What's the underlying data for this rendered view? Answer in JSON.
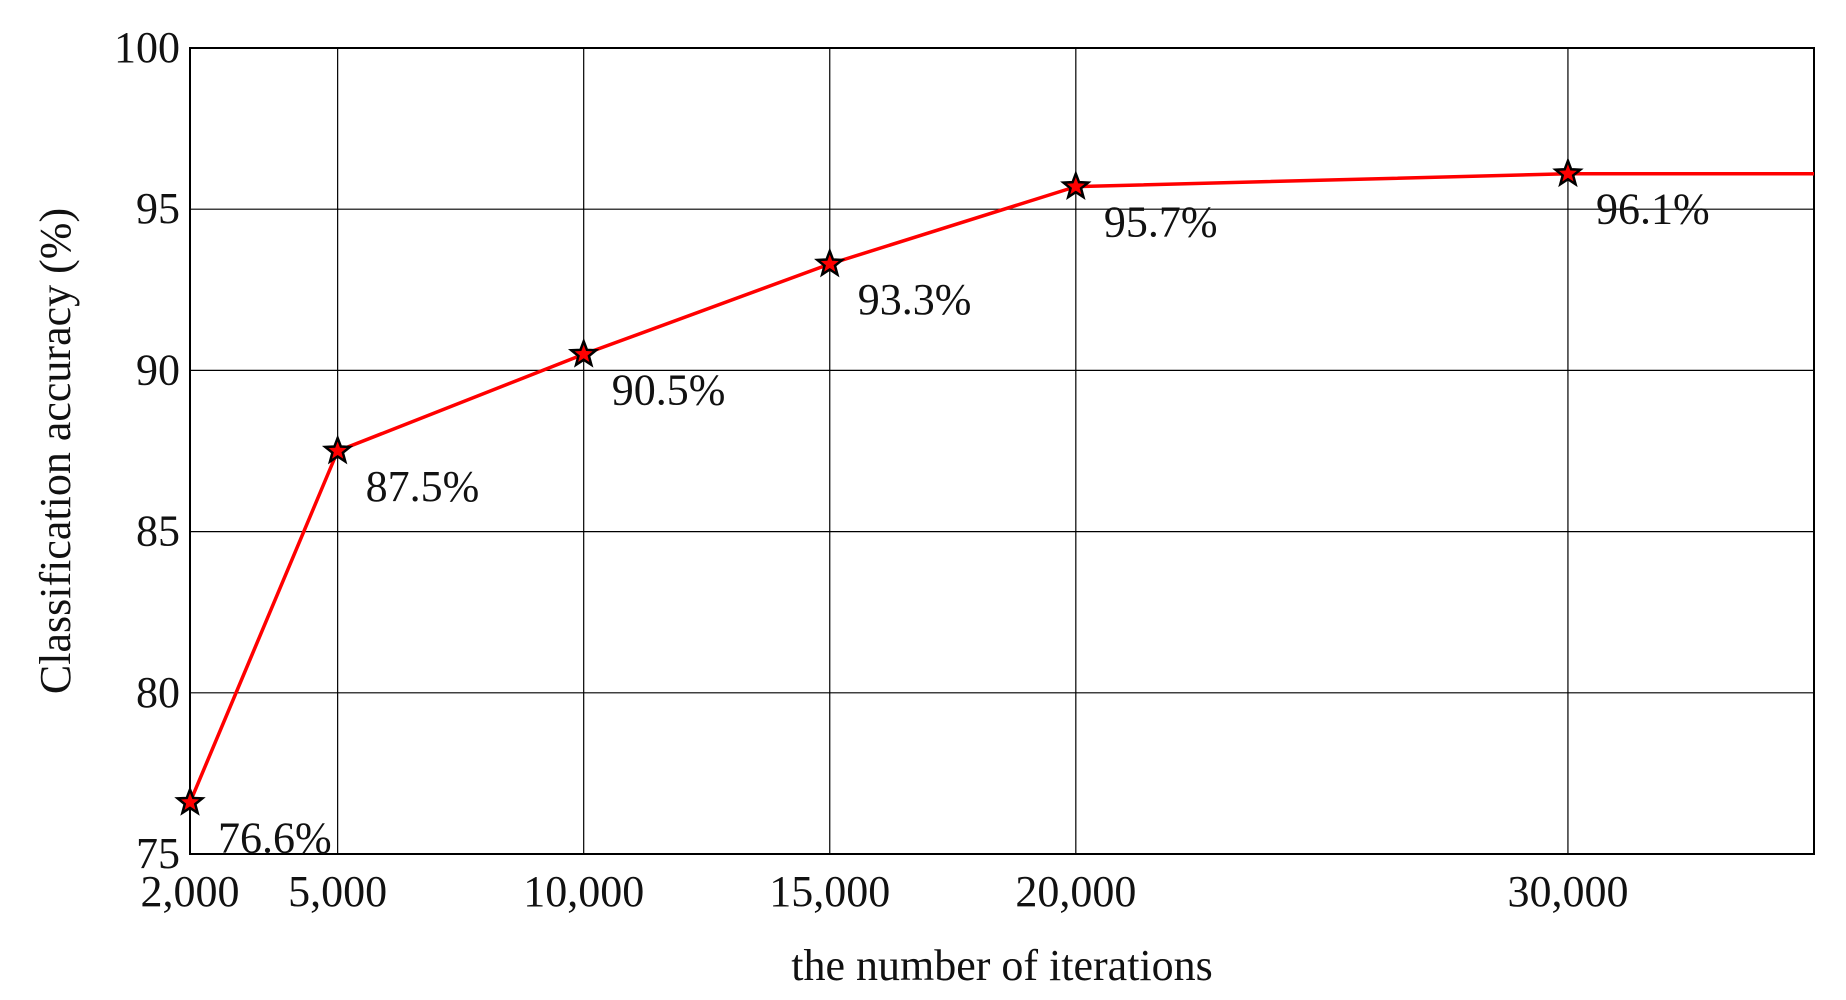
{
  "chart_data": {
    "type": "line",
    "title": "",
    "xlabel": "the number of iterations",
    "ylabel": "Classification accuracy (%)",
    "x_ticks": [
      {
        "value": 2000,
        "label": "2,000"
      },
      {
        "value": 5000,
        "label": "5,000"
      },
      {
        "value": 10000,
        "label": "10,000"
      },
      {
        "value": 15000,
        "label": "15,000"
      },
      {
        "value": 20000,
        "label": "20,000"
      },
      {
        "value": 30000,
        "label": "30,000"
      }
    ],
    "y_ticks": [
      75,
      80,
      85,
      90,
      95,
      100
    ],
    "xlim": [
      2000,
      35000
    ],
    "ylim": [
      75,
      100
    ],
    "grid": true,
    "legend": "none",
    "series": [
      {
        "x": [
          2000,
          5000,
          10000,
          15000,
          20000,
          30000,
          35000
        ],
        "y": [
          76.6,
          87.5,
          90.5,
          93.3,
          95.7,
          96.1,
          96.1
        ],
        "color": "#ff0000",
        "marker": "star"
      }
    ],
    "data_labels": [
      {
        "x": 2000,
        "y": 76.6,
        "text": "76.6%"
      },
      {
        "x": 5000,
        "y": 87.5,
        "text": "87.5%"
      },
      {
        "x": 10000,
        "y": 90.5,
        "text": "90.5%"
      },
      {
        "x": 15000,
        "y": 93.3,
        "text": "93.3%"
      },
      {
        "x": 20000,
        "y": 95.7,
        "text": "95.7%"
      },
      {
        "x": 30000,
        "y": 96.1,
        "text": "96.1%"
      }
    ],
    "marked_points": [
      {
        "x": 2000,
        "y": 76.6
      },
      {
        "x": 5000,
        "y": 87.5
      },
      {
        "x": 10000,
        "y": 90.5
      },
      {
        "x": 15000,
        "y": 93.3
      },
      {
        "x": 20000,
        "y": 95.7
      },
      {
        "x": 30000,
        "y": 96.1
      }
    ]
  }
}
